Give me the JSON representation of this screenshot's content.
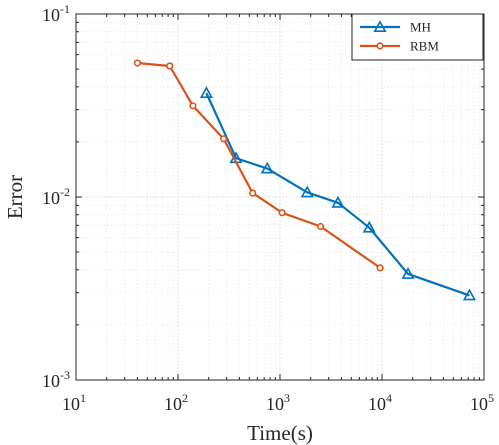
{
  "chart_data": {
    "type": "line",
    "xlabel": "Time(s)",
    "ylabel": "Error",
    "xscale": "log",
    "yscale": "log",
    "xlim": [
      10,
      100000
    ],
    "ylim": [
      0.001,
      0.1
    ],
    "x_ticks": [
      {
        "base": "10",
        "exp": "1"
      },
      {
        "base": "10",
        "exp": "2"
      },
      {
        "base": "10",
        "exp": "3"
      },
      {
        "base": "10",
        "exp": "4"
      },
      {
        "base": "10",
        "exp": "5"
      }
    ],
    "y_ticks": [
      {
        "base": "10",
        "exp": "-3"
      },
      {
        "base": "10",
        "exp": "-2"
      },
      {
        "base": "10",
        "exp": "-1"
      }
    ],
    "grid": true,
    "legend_position": "top-right",
    "series": [
      {
        "name": "MH",
        "color": "#0072BD",
        "marker": "triangle",
        "x": [
          190,
          370,
          750,
          1850,
          3700,
          7500,
          18000,
          72000
        ],
        "y": [
          0.037,
          0.0163,
          0.0143,
          0.0106,
          0.0093,
          0.0068,
          0.0038,
          0.0029
        ]
      },
      {
        "name": "RBM",
        "color": "#D95319",
        "marker": "circle",
        "x": [
          40,
          83,
          140,
          280,
          540,
          1050,
          2500,
          9600
        ],
        "y": [
          0.054,
          0.052,
          0.0315,
          0.0208,
          0.0105,
          0.0082,
          0.0069,
          0.0041
        ]
      }
    ]
  }
}
